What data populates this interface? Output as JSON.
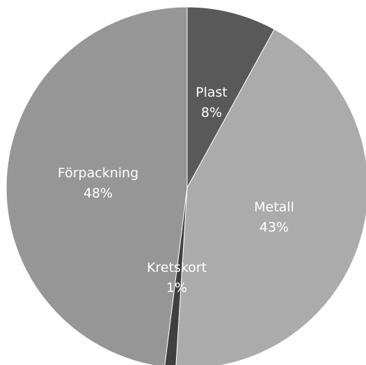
{
  "chart_data": {
    "type": "pie",
    "start_angle_deg": 0,
    "direction": "clockwise",
    "slices": [
      {
        "label": "Plast",
        "value": 8,
        "value_label": "8%",
        "color": "#595959"
      },
      {
        "label": "Metall",
        "value": 43,
        "value_label": "43%",
        "color": "#ababab"
      },
      {
        "label": "Kretskort",
        "value": 1,
        "value_label": "1%",
        "color": "#404040"
      },
      {
        "label": "Förpackning",
        "value": 48,
        "value_label": "48%",
        "color": "#969696"
      }
    ]
  }
}
